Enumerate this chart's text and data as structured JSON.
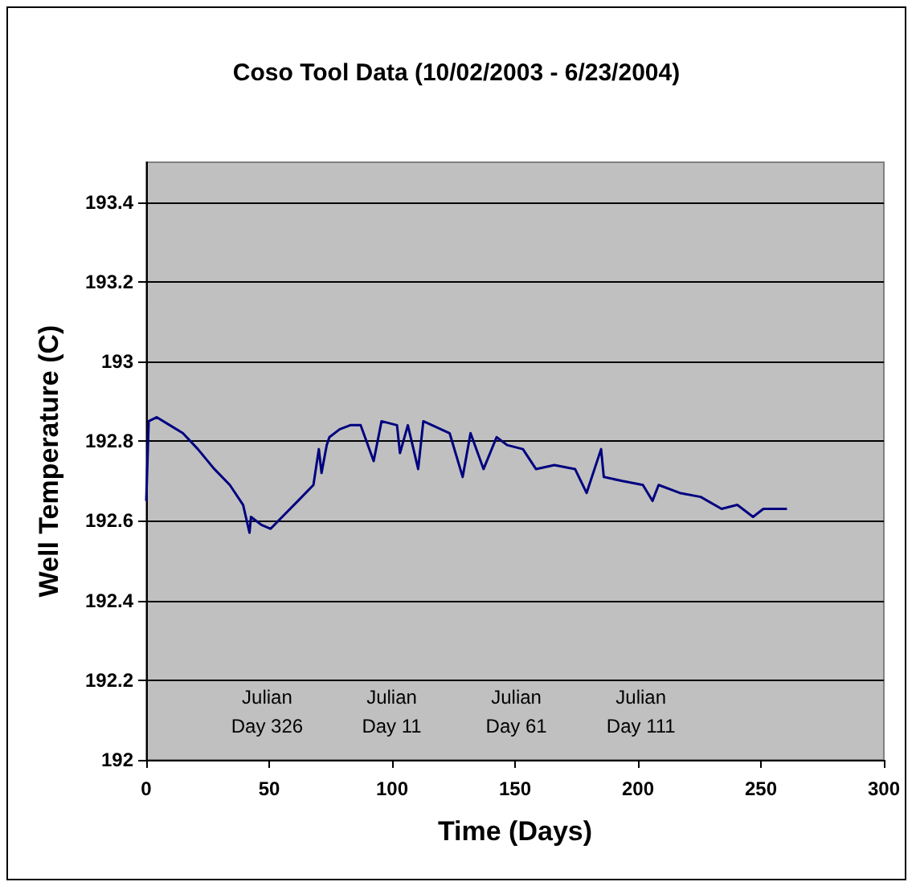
{
  "chart_data": {
    "type": "line",
    "title": "Coso Tool Data (10/02/2003 - 6/23/2004)",
    "xlabel": "Time (Days)",
    "ylabel": "Well Temperature (C)",
    "x": [
      0,
      1,
      4.3,
      9.6,
      14.9,
      21,
      27.7,
      34,
      39.4,
      42,
      42.6,
      46.8,
      50.6,
      55.3,
      61.7,
      68,
      70.2,
      71.3,
      73.4,
      74.5,
      78.7,
      83,
      87.2,
      92.5,
      95.7,
      102,
      103.2,
      106.4,
      110.6,
      112.7,
      123.4,
      128.7,
      131.9,
      137.2,
      142.5,
      146.8,
      153.2,
      158.5,
      166,
      174.4,
      179.1,
      185,
      186.1,
      193.6,
      202,
      205.9,
      208.4,
      217,
      225.5,
      234,
      240.4,
      246.8,
      251,
      260.6
    ],
    "values": [
      192.65,
      192.85,
      192.86,
      192.84,
      192.82,
      192.78,
      192.73,
      192.69,
      192.64,
      192.57,
      192.61,
      192.59,
      192.58,
      192.61,
      192.65,
      192.69,
      192.78,
      192.72,
      192.79,
      192.81,
      192.83,
      192.84,
      192.84,
      192.75,
      192.85,
      192.84,
      192.77,
      192.84,
      192.73,
      192.85,
      192.82,
      192.71,
      192.82,
      192.73,
      192.81,
      192.79,
      192.78,
      192.73,
      192.74,
      192.73,
      192.67,
      192.78,
      192.71,
      192.7,
      192.69,
      192.65,
      192.69,
      192.67,
      192.66,
      192.63,
      192.64,
      192.61,
      192.63,
      192.63
    ],
    "color": "#000080",
    "xlim": [
      0,
      300
    ],
    "xticks": [
      0,
      50,
      100,
      150,
      200,
      250,
      300
    ],
    "ylim": [
      192,
      193.5
    ],
    "yticks": [
      192,
      192.2,
      192.4,
      192.6,
      192.8,
      193,
      193.2,
      193.4
    ],
    "grid": "y",
    "marker": "none",
    "line_style": "solid",
    "annotations": [
      "Julian\nDay 326",
      "Julian\nDay 11",
      "Julian\nDay 61",
      "Julian\nDay 111"
    ]
  }
}
